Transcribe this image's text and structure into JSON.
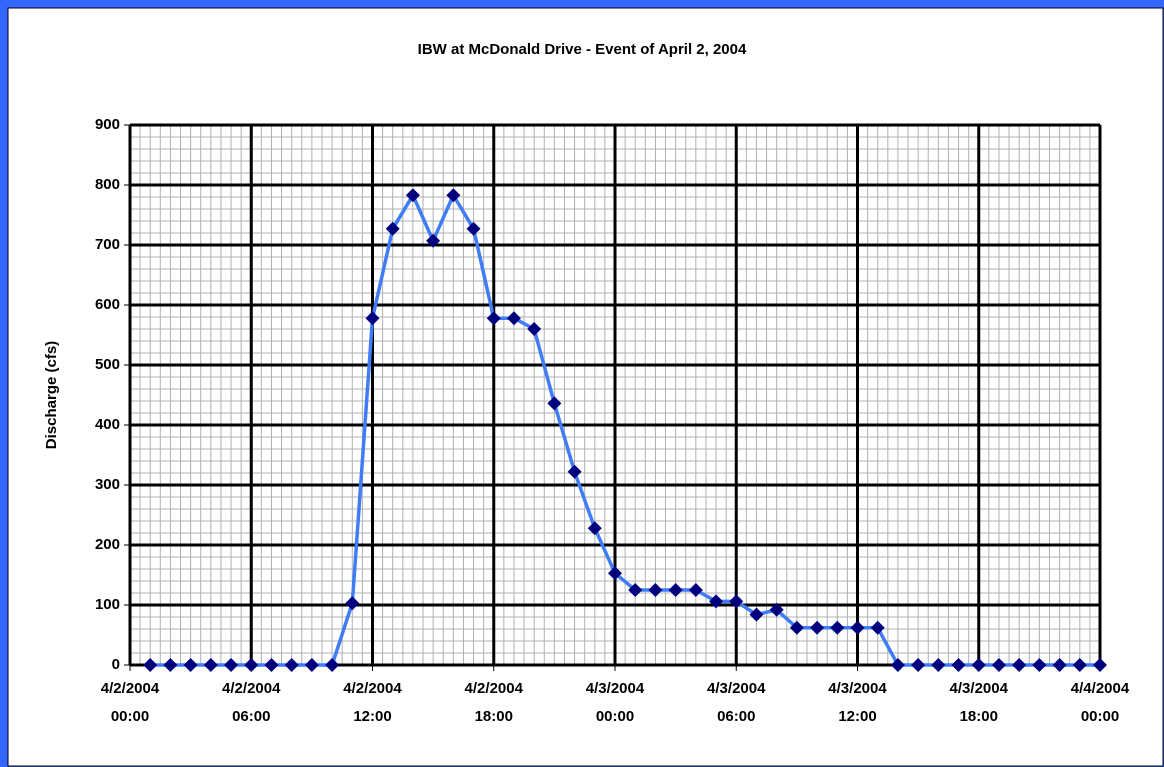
{
  "chart_data": {
    "type": "line",
    "title": "IBW at McDonald Drive - Event of April 2, 2004",
    "y_label": "Discharge (cfs)",
    "x": [
      "2004-04-02T01:00",
      "2004-04-02T02:00",
      "2004-04-02T03:00",
      "2004-04-02T04:00",
      "2004-04-02T05:00",
      "2004-04-02T06:00",
      "2004-04-02T07:00",
      "2004-04-02T08:00",
      "2004-04-02T09:00",
      "2004-04-02T10:00",
      "2004-04-02T11:00",
      "2004-04-02T12:00",
      "2004-04-02T13:00",
      "2004-04-02T14:00",
      "2004-04-02T15:00",
      "2004-04-02T16:00",
      "2004-04-02T17:00",
      "2004-04-02T18:00",
      "2004-04-02T19:00",
      "2004-04-02T20:00",
      "2004-04-02T21:00",
      "2004-04-02T22:00",
      "2004-04-02T23:00",
      "2004-04-03T00:00",
      "2004-04-03T01:00",
      "2004-04-03T02:00",
      "2004-04-03T03:00",
      "2004-04-03T04:00",
      "2004-04-03T05:00",
      "2004-04-03T06:00",
      "2004-04-03T07:00",
      "2004-04-03T08:00",
      "2004-04-03T09:00",
      "2004-04-03T10:00",
      "2004-04-03T11:00",
      "2004-04-03T12:00",
      "2004-04-03T13:00",
      "2004-04-03T14:00",
      "2004-04-03T15:00",
      "2004-04-03T16:00",
      "2004-04-03T17:00",
      "2004-04-03T18:00",
      "2004-04-03T19:00",
      "2004-04-03T20:00",
      "2004-04-03T21:00",
      "2004-04-03T22:00",
      "2004-04-03T23:00",
      "2004-04-04T00:00"
    ],
    "series": [
      {
        "color": "#3f7cf5",
        "marker_color": "#00007f",
        "values": [
          0,
          0,
          0,
          0,
          0,
          0,
          0,
          0,
          0,
          0,
          103,
          578,
          727,
          783,
          707,
          783,
          727,
          578,
          578,
          560,
          436,
          322,
          228,
          153,
          125,
          125,
          125,
          125,
          106,
          106,
          84,
          92,
          62,
          62,
          62,
          62,
          62,
          0,
          0,
          0,
          0,
          0,
          0,
          0,
          0,
          0,
          0,
          0
        ]
      }
    ],
    "xlim": [
      "2004-04-02T00:00",
      "2004-04-04T00:00"
    ],
    "xticks": [
      {
        "value": "2004-04-02T00:00",
        "label": "4/2/2004 00:00"
      },
      {
        "value": "2004-04-02T06:00",
        "label": "4/2/2004 06:00"
      },
      {
        "value": "2004-04-02T12:00",
        "label": "4/2/2004 12:00"
      },
      {
        "value": "2004-04-02T18:00",
        "label": "4/2/2004 18:00"
      },
      {
        "value": "2004-04-03T00:00",
        "label": "4/3/2004 00:00"
      },
      {
        "value": "2004-04-03T06:00",
        "label": "4/3/2004 06:00"
      },
      {
        "value": "2004-04-03T12:00",
        "label": "4/3/2004 12:00"
      },
      {
        "value": "2004-04-03T18:00",
        "label": "4/3/2004 18:00"
      },
      {
        "value": "2004-04-04T00:00",
        "label": "4/4/2004 00:00"
      }
    ],
    "ylim": [
      0,
      900
    ],
    "yticks": [
      0,
      100,
      200,
      300,
      400,
      500,
      600,
      700,
      800,
      900
    ],
    "grid": true,
    "minor_grid": true
  }
}
